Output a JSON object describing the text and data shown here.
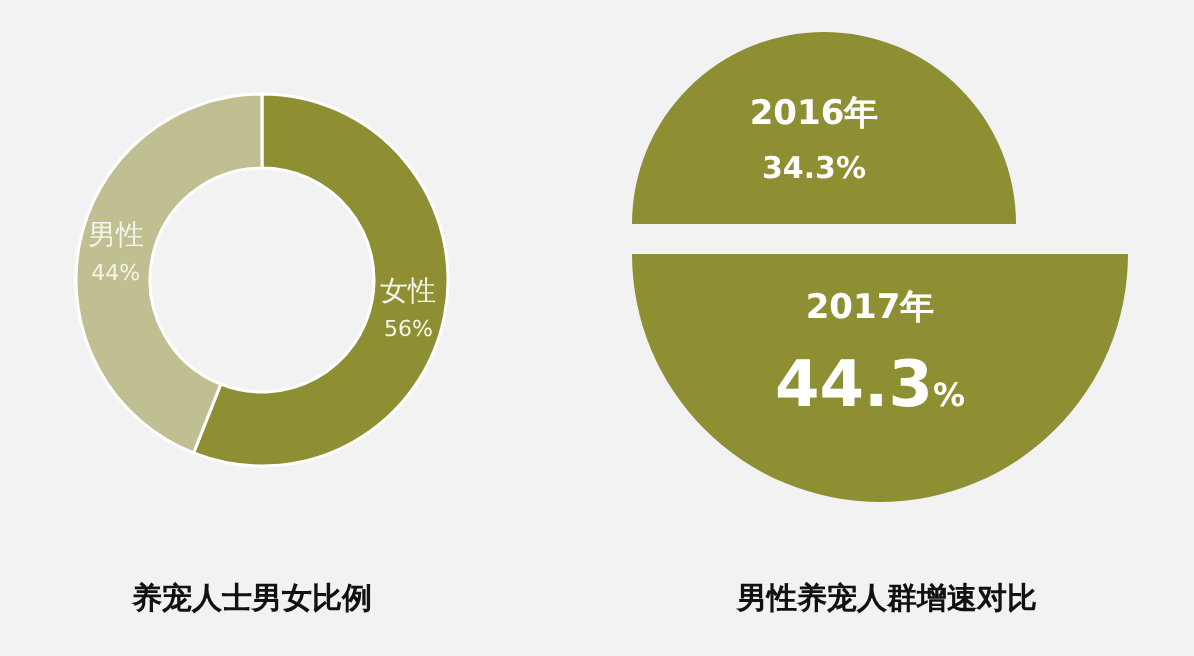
{
  "chart_data": [
    {
      "type": "donut",
      "title": "养宠人士男女比例",
      "categories": [
        "女性",
        "男性"
      ],
      "values": [
        56,
        44
      ],
      "value_labels": [
        "56%",
        "44%"
      ],
      "colors": [
        "#8e8f33",
        "#bfbf91"
      ]
    },
    {
      "type": "other",
      "title": "男性养宠人群增速对比",
      "categories": [
        "2016年",
        "2017年"
      ],
      "values": [
        34.3,
        44.3
      ],
      "value_labels": [
        "34.3%",
        "44.3%"
      ],
      "color": "#8e8f33"
    }
  ]
}
